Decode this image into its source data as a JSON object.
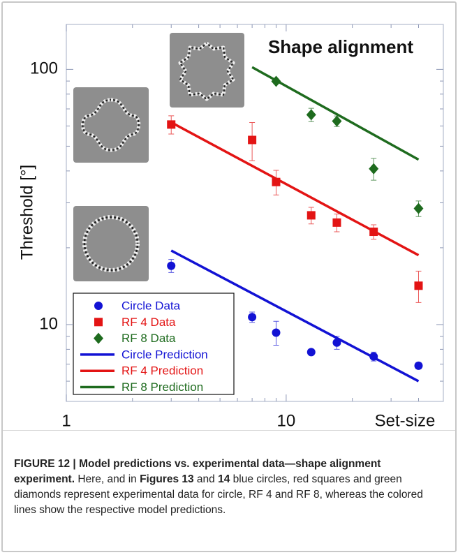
{
  "chart_data": {
    "type": "scatter",
    "annotation": "Shape alignment",
    "xlabel": "Set-size",
    "ylabel": "Threshold [°]",
    "xscale": "log",
    "yscale": "log",
    "xlim": [
      1,
      50
    ],
    "ylim": [
      5,
      150
    ],
    "xticks": [
      1,
      10
    ],
    "yticks": [
      10,
      100
    ],
    "xminorticks": [
      2,
      3,
      4,
      5,
      6,
      7,
      8,
      9,
      20,
      30,
      40
    ],
    "yminorticks": [
      6,
      7,
      8,
      9,
      20,
      30,
      40,
      50,
      60,
      70,
      80,
      90
    ],
    "legend": "bottom-left",
    "series": [
      {
        "name": "Circle Data",
        "type": "scatter",
        "marker": "circle",
        "color": "#1212d4",
        "x": [
          3,
          7,
          9,
          13,
          17,
          25,
          40
        ],
        "values": [
          17.0,
          10.7,
          9.3,
          7.8,
          8.5,
          7.5,
          6.9
        ],
        "errors": [
          1.0,
          0.5,
          1.0,
          0.2,
          0.5,
          0.3,
          0.2
        ]
      },
      {
        "name": "RF 4 Data",
        "type": "scatter",
        "marker": "square",
        "color": "#e31414",
        "x": [
          3,
          7,
          9,
          13,
          17,
          25,
          40
        ],
        "values": [
          60.8,
          52.9,
          36.2,
          26.8,
          25.1,
          23.1,
          14.2
        ],
        "errors": [
          5,
          9,
          4,
          2,
          2,
          1.5,
          2
        ]
      },
      {
        "name": "RF 8 Data",
        "type": "scatter",
        "marker": "diamond",
        "color": "#1e6b1e",
        "x": [
          9,
          13,
          17,
          25,
          40
        ],
        "values": [
          89.8,
          66.4,
          62.7,
          40.8,
          28.5
        ],
        "errors": [
          2,
          4,
          3,
          4,
          2
        ]
      },
      {
        "name": "Circle Prediction",
        "type": "line",
        "color": "#1212d4",
        "x": [
          3,
          40
        ],
        "values": [
          19.5,
          6.0
        ]
      },
      {
        "name": "RF 4 Prediction",
        "type": "line",
        "color": "#e31414",
        "x": [
          3,
          40
        ],
        "values": [
          62,
          18.7
        ]
      },
      {
        "name": "RF 8 Prediction",
        "type": "line",
        "color": "#1e6b1e",
        "x": [
          7,
          40
        ],
        "values": [
          102,
          44.3
        ]
      }
    ]
  },
  "caption": {
    "label": "FIGURE 12 |",
    "title": "Model predictions vs. experimental data—shape alignment experiment.",
    "body": [
      " Here, and in ",
      "Figures 13",
      " and ",
      "14",
      " blue circles, red squares and green diamonds represent experimental data for circle, RF 4 and RF 8, whereas the colored lines show the respective model predictions."
    ]
  }
}
